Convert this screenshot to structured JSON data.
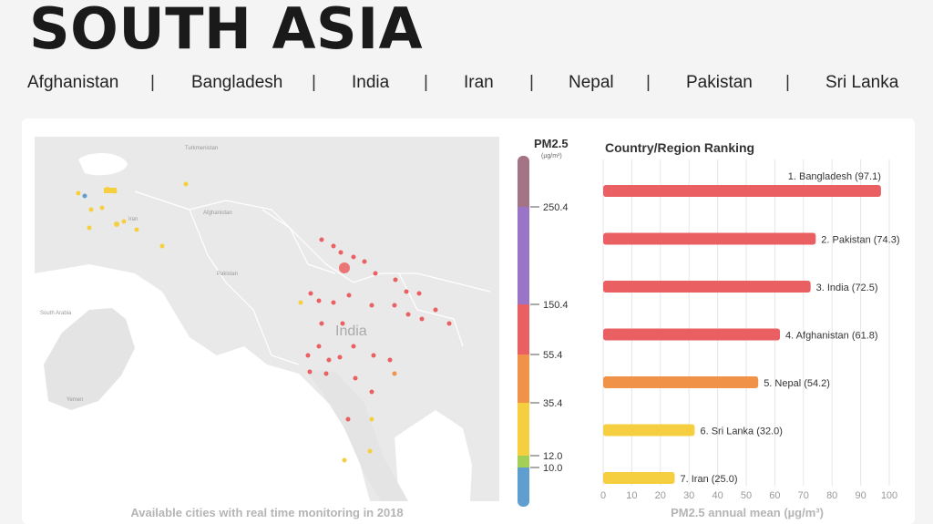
{
  "page_title": "SOUTH ASIA",
  "nav": {
    "items": [
      "Afghanistan",
      "Bangladesh",
      "India",
      "Iran",
      "Nepal",
      "Pakistan",
      "Sri  Lanka"
    ],
    "separator": "|"
  },
  "map": {
    "label_main": "India",
    "labels": [
      "Pakistan",
      "Iran",
      "South Arabia",
      "Yemen",
      "Afghanistan",
      "Turkmenistan"
    ],
    "caption": "Available cities with real time monitoring in 2018"
  },
  "legend": {
    "title": "PM2.5",
    "unit": "(µg/m³)",
    "ticks": [
      "250.4",
      "150.4",
      "55.4",
      "35.4",
      "12.0",
      "10.0"
    ],
    "colors": {
      "hazardous": "#a47386",
      "very_unhealthy": "#9a74c6",
      "unhealthy": "#ea5f62",
      "sensitive": "#f19249",
      "moderate": "#f5cf3f",
      "good_high": "#a4cf56",
      "good": "#5f9fcf"
    }
  },
  "chart_data": {
    "type": "bar",
    "orientation": "horizontal",
    "title": "Country/Region Ranking",
    "xlabel": "PM2.5 annual mean (µg/m³)",
    "xlim": [
      0,
      100
    ],
    "xticks": [
      0,
      10,
      20,
      30,
      40,
      50,
      60,
      70,
      80,
      90,
      100
    ],
    "categories": [
      "1. Bangladesh",
      "2. Pakistan",
      "3. India",
      "4. Afghanistan",
      "5. Nepal",
      "6. Sri Lanka",
      "7. Iran"
    ],
    "values": [
      97.1,
      74.3,
      72.5,
      61.8,
      54.2,
      32.0,
      25.0
    ],
    "labels": [
      "1. Bangladesh (97.1)",
      "2. Pakistan (74.3)",
      "3. India (72.5)",
      "4. Afghanistan (61.8)",
      "5. Nepal (54.2)",
      "6. Sri Lanka (32.0)",
      "7. Iran (25.0)"
    ],
    "colors": [
      "#ea5f62",
      "#ea5f62",
      "#ea5f62",
      "#ea5f62",
      "#f19249",
      "#f5cf3f",
      "#f5cf3f"
    ],
    "grid": true
  }
}
